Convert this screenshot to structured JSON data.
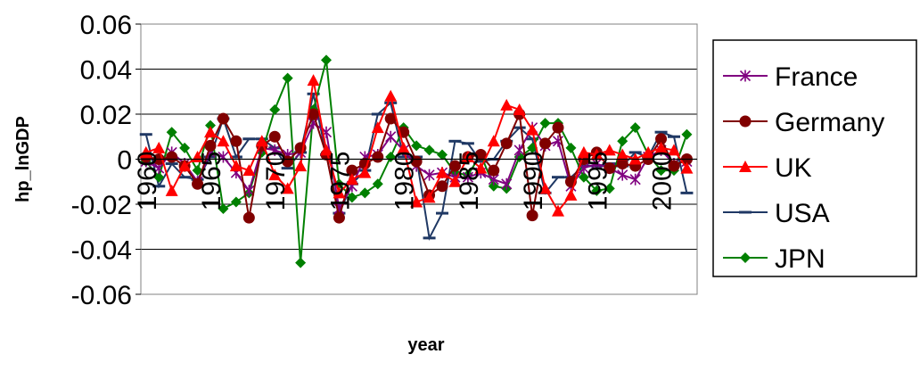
{
  "chart_data": {
    "type": "line",
    "title": "",
    "xlabel": "year",
    "ylabel": "hp_lnGDP",
    "ylim": [
      -0.06,
      0.06
    ],
    "yticks": [
      "0.06",
      "0.04",
      "0.02",
      "0",
      "-0.02",
      "-0.04",
      "-0.06"
    ],
    "ytick_values": [
      0.06,
      0.04,
      0.02,
      0,
      -0.02,
      -0.04,
      -0.06
    ],
    "xticks": [
      "1960",
      "1965",
      "1970",
      "1975",
      "1980",
      "1985",
      "1990",
      "1995",
      "2000"
    ],
    "xtick_years": [
      1960,
      1965,
      1970,
      1975,
      1980,
      1985,
      1990,
      1995,
      2000
    ],
    "x": [
      1960,
      1961,
      1962,
      1963,
      1964,
      1965,
      1966,
      1967,
      1968,
      1969,
      1970,
      1971,
      1972,
      1973,
      1974,
      1975,
      1976,
      1977,
      1978,
      1979,
      1980,
      1981,
      1982,
      1983,
      1984,
      1985,
      1986,
      1987,
      1988,
      1989,
      1990,
      1991,
      1992,
      1993,
      1994,
      1995,
      1996,
      1997,
      1998,
      1999,
      2000,
      2001,
      2002
    ],
    "grid": "horizontal",
    "legend_position": "right",
    "series": [
      {
        "name": "France",
        "color": "#800080",
        "marker": "asterisk",
        "values": [
          -0.001,
          -0.004,
          0.003,
          -0.002,
          -0.01,
          0.003,
          0.001,
          -0.006,
          -0.014,
          0.005,
          0.004,
          0.002,
          0.003,
          0.016,
          0.012,
          -0.022,
          -0.012,
          0.001,
          0.002,
          0.01,
          0.004,
          -0.003,
          -0.007,
          -0.006,
          -0.008,
          -0.008,
          -0.006,
          -0.009,
          -0.011,
          0.004,
          0.014,
          0.006,
          0.008,
          -0.012,
          -0.004,
          -0.002,
          -0.004,
          -0.007,
          -0.009,
          0.001,
          0.004,
          -0.002,
          -0.001
        ]
      },
      {
        "name": "Germany",
        "color": "#800000",
        "marker": "circle",
        "values": [
          0.001,
          0,
          0.001,
          -0.003,
          -0.011,
          0.006,
          0.018,
          0.008,
          -0.026,
          0.006,
          0.01,
          -0.001,
          0.005,
          0.02,
          0.002,
          -0.026,
          -0.005,
          -0.002,
          0.001,
          0.018,
          0.012,
          -0.001,
          -0.016,
          -0.012,
          -0.003,
          0.001,
          0.002,
          -0.005,
          0.007,
          0.02,
          -0.025,
          0.007,
          0.014,
          -0.01,
          0,
          0.003,
          -0.004,
          -0.002,
          -0.003,
          0,
          0.009,
          -0.003,
          0
        ]
      },
      {
        "name": "UK",
        "color": "#ff0000",
        "marker": "triangle",
        "values": [
          0.003,
          0.005,
          -0.014,
          -0.003,
          0.001,
          0.012,
          0.008,
          -0.003,
          -0.005,
          0.008,
          -0.007,
          -0.013,
          -0.003,
          0.035,
          0.004,
          -0.015,
          -0.009,
          -0.006,
          0.014,
          0.028,
          0.005,
          -0.019,
          -0.017,
          -0.006,
          -0.01,
          0.001,
          -0.004,
          0.008,
          0.024,
          0.022,
          0.013,
          -0.013,
          -0.023,
          -0.016,
          0.003,
          0.002,
          0.004,
          0.002,
          0,
          0.003,
          0.005,
          0.004,
          -0.004
        ]
      },
      {
        "name": "USA",
        "color": "#1f3864",
        "marker": "dash",
        "values": [
          0.011,
          -0.012,
          -0.002,
          -0.008,
          -0.009,
          0.001,
          0.018,
          0.001,
          0.009,
          0.009,
          0.005,
          -0.004,
          0.003,
          0.029,
          0.002,
          -0.024,
          -0.011,
          -0.005,
          0.02,
          0.025,
          0.001,
          0.001,
          -0.035,
          -0.024,
          0.008,
          0.007,
          -0.001,
          0,
          0.008,
          0.014,
          0.009,
          -0.015,
          -0.008,
          -0.008,
          -0.003,
          -0.003,
          -0.002,
          -0.003,
          0.003,
          0.001,
          0.012,
          0.01,
          -0.015
        ]
      },
      {
        "name": "JPN",
        "color": "#008000",
        "marker": "diamond",
        "values": [
          -0.001,
          -0.008,
          0.012,
          0.005,
          -0.005,
          0.015,
          -0.022,
          -0.019,
          -0.015,
          0.003,
          0.022,
          0.036,
          -0.046,
          0.022,
          0.044,
          -0.011,
          -0.017,
          -0.015,
          -0.011,
          0.001,
          0.014,
          0.006,
          0.004,
          0.002,
          -0.006,
          -0.007,
          0.002,
          -0.012,
          -0.013,
          0.001,
          0.005,
          0.016,
          0.016,
          0.005,
          -0.008,
          -0.014,
          -0.013,
          0.008,
          0.014,
          0.002,
          -0.005,
          -0.005,
          0.011
        ]
      }
    ]
  }
}
